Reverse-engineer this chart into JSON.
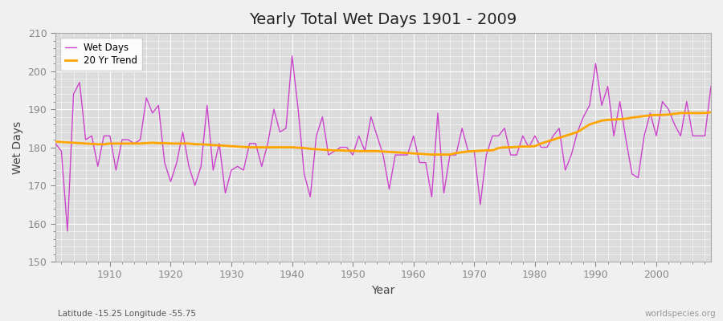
{
  "title": "Yearly Total Wet Days 1901 - 2009",
  "xlabel": "Year",
  "ylabel": "Wet Days",
  "subtitle": "Latitude -15.25 Longitude -55.75",
  "watermark": "worldspecies.org",
  "ylim": [
    150,
    210
  ],
  "xlim": [
    1901,
    2009
  ],
  "wet_days_color": "#CC44CC",
  "trend_color": "#FFA500",
  "figure_bg": "#F0F0F0",
  "plot_bg": "#DCDCDC",
  "grid_color": "#FFFFFF",
  "years": [
    1901,
    1902,
    1903,
    1904,
    1905,
    1906,
    1907,
    1908,
    1909,
    1910,
    1911,
    1912,
    1913,
    1914,
    1915,
    1916,
    1917,
    1918,
    1919,
    1920,
    1921,
    1922,
    1923,
    1924,
    1925,
    1926,
    1927,
    1928,
    1929,
    1930,
    1931,
    1932,
    1933,
    1934,
    1935,
    1936,
    1937,
    1938,
    1939,
    1940,
    1941,
    1942,
    1943,
    1944,
    1945,
    1946,
    1947,
    1948,
    1949,
    1950,
    1951,
    1952,
    1953,
    1954,
    1955,
    1956,
    1957,
    1958,
    1959,
    1960,
    1961,
    1962,
    1963,
    1964,
    1965,
    1966,
    1967,
    1968,
    1969,
    1970,
    1971,
    1972,
    1973,
    1974,
    1975,
    1976,
    1977,
    1978,
    1979,
    1980,
    1981,
    1982,
    1983,
    1984,
    1985,
    1986,
    1987,
    1988,
    1989,
    1990,
    1991,
    1992,
    1993,
    1994,
    1995,
    1996,
    1997,
    1998,
    1999,
    2000,
    2001,
    2002,
    2003,
    2004,
    2005,
    2006,
    2007,
    2008,
    2009
  ],
  "wet_days": [
    181,
    179,
    158,
    194,
    197,
    182,
    183,
    175,
    183,
    183,
    174,
    182,
    182,
    181,
    182,
    193,
    189,
    191,
    176,
    171,
    176,
    184,
    175,
    170,
    175,
    191,
    174,
    181,
    168,
    174,
    175,
    174,
    181,
    181,
    175,
    181,
    190,
    184,
    185,
    204,
    190,
    173,
    167,
    183,
    188,
    178,
    179,
    180,
    180,
    178,
    183,
    179,
    188,
    183,
    178,
    169,
    178,
    178,
    178,
    183,
    176,
    176,
    167,
    189,
    168,
    178,
    178,
    185,
    179,
    179,
    165,
    178,
    183,
    183,
    185,
    178,
    178,
    183,
    180,
    183,
    180,
    180,
    183,
    185,
    174,
    178,
    184,
    188,
    191,
    202,
    191,
    196,
    183,
    192,
    182,
    173,
    172,
    183,
    189,
    183,
    192,
    190,
    186,
    183,
    192,
    183,
    183,
    183,
    196
  ],
  "trend": [
    181.5,
    181.4,
    181.3,
    181.2,
    181.1,
    181.0,
    180.9,
    180.8,
    180.8,
    181.0,
    181.0,
    181.0,
    181.0,
    181.0,
    181.0,
    181.1,
    181.2,
    181.1,
    181.1,
    181.0,
    181.0,
    181.0,
    181.0,
    180.8,
    180.8,
    180.7,
    180.6,
    180.5,
    180.4,
    180.3,
    180.2,
    180.1,
    180.0,
    180.0,
    180.0,
    180.0,
    180.0,
    180.0,
    180.0,
    180.0,
    179.9,
    179.8,
    179.6,
    179.5,
    179.4,
    179.3,
    179.2,
    179.2,
    179.1,
    179.1,
    179.0,
    179.0,
    179.0,
    179.0,
    178.9,
    178.8,
    178.7,
    178.6,
    178.5,
    178.4,
    178.3,
    178.2,
    178.1,
    178.1,
    178.1,
    178.1,
    178.5,
    178.7,
    178.9,
    179.0,
    179.1,
    179.2,
    179.2,
    179.8,
    180.0,
    180.0,
    180.1,
    180.2,
    180.2,
    180.3,
    181.0,
    181.5,
    182.0,
    182.5,
    183.0,
    183.5,
    184.0,
    185.0,
    186.0,
    186.5,
    187.0,
    187.2,
    187.3,
    187.4,
    187.5,
    187.8,
    188.0,
    188.2,
    188.4,
    188.5,
    188.5,
    188.6,
    188.8,
    189.0,
    189.0,
    189.0,
    189.0,
    189.0,
    189.2
  ]
}
